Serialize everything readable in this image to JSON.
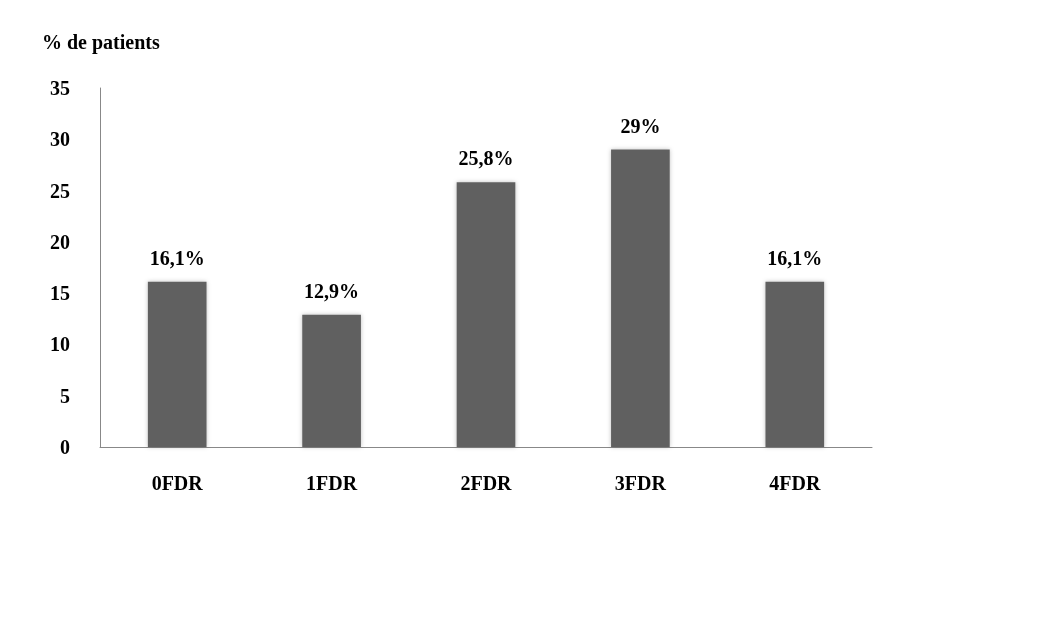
{
  "chart_data": {
    "type": "bar",
    "ylabel": "% de patients",
    "categories": [
      "0FDR",
      "1FDR",
      "2FDR",
      "3FDR",
      "4FDR"
    ],
    "values": [
      16.1,
      12.9,
      25.8,
      29,
      16.1
    ],
    "value_labels": [
      "16,1%",
      "12,9%",
      "25,8%",
      "29%",
      "16,1%"
    ],
    "color": "#606060",
    "ylim": [
      0,
      35
    ],
    "yticks": [
      0,
      5,
      10,
      15,
      20,
      25,
      30,
      35
    ],
    "grid": false
  }
}
